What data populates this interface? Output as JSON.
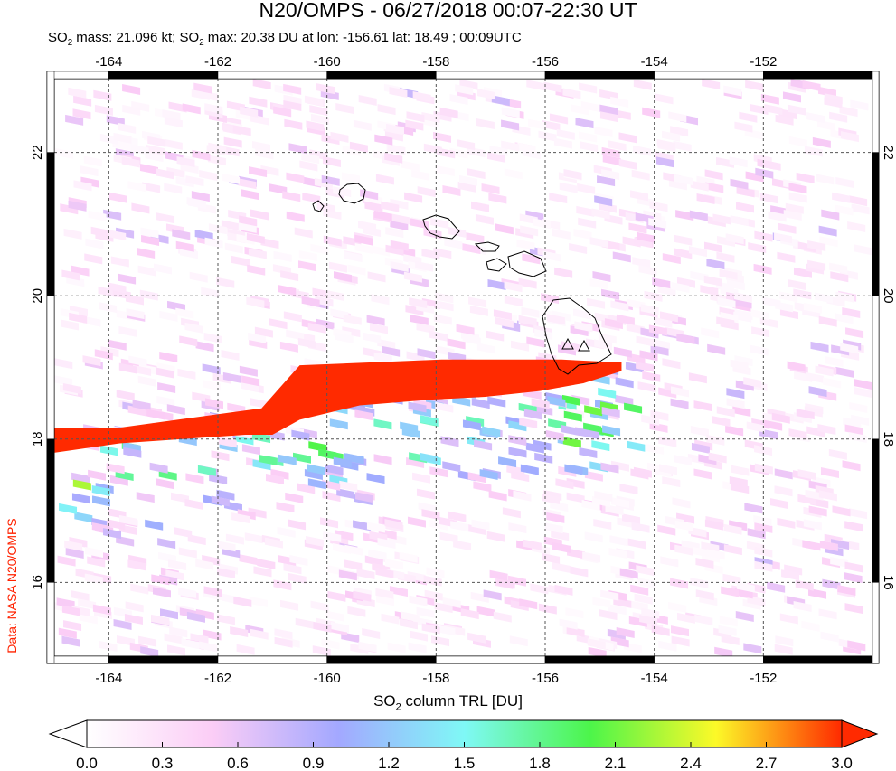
{
  "title": "N20/OMPS - 06/27/2018 00:07-22:30 UT",
  "subtitle": {
    "p1": "SO",
    "s1": "2",
    "p2": " mass: 21.096 kt; SO",
    "s2": "2",
    "p3": " max: 20.38 DU at lon: -156.61 lat: 18.49 ; 00:09UTC"
  },
  "credit": "Data: NASA N20/OMPS",
  "map": {
    "lon_range": [
      -165,
      -150
    ],
    "lat_range": [
      14.97,
      23.03
    ],
    "lon_ticks": [
      "-164",
      "-162",
      "-160",
      "-158",
      "-156",
      "-154",
      "-152"
    ],
    "lat_ticks": [
      "22",
      "20",
      "18",
      "16"
    ],
    "grid": "dashed",
    "volcano_markers": "triangle"
  },
  "colorbar": {
    "label_p1": "SO",
    "label_s": "2",
    "label_p2": " column TRL [DU]",
    "ticks": [
      "0.0",
      "0.3",
      "0.6",
      "0.9",
      "1.2",
      "1.5",
      "1.8",
      "2.1",
      "2.4",
      "2.7",
      "3.0"
    ],
    "range": [
      0,
      3
    ],
    "colors": [
      "#ffffff",
      "#fbcdf6",
      "#a3a8ff",
      "#7ff8f6",
      "#4cf54a",
      "#fcf928",
      "#ff2a00"
    ]
  }
}
